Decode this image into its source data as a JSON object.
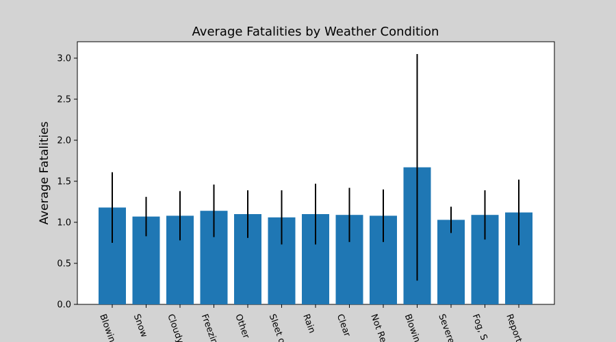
{
  "chart_data": {
    "type": "bar",
    "title": "Average Fatalities by Weather Condition",
    "xlabel": "",
    "ylabel": "Average Fatalities",
    "ylim": [
      0,
      3.2
    ],
    "yticks": [
      0.0,
      0.5,
      1.0,
      1.5,
      2.0,
      2.5,
      3.0
    ],
    "ytick_labels": [
      "0.0",
      "0.5",
      "1.0",
      "1.5",
      "2.0",
      "2.5",
      "3.0"
    ],
    "categories": [
      "Blowin",
      "Snow",
      "Cloudy",
      "Freezin",
      "Other",
      "Sleet o",
      "Rain",
      "Clear",
      "Not Re",
      "Blowin",
      "Severe",
      "Fog, S",
      "Report"
    ],
    "values": [
      1.18,
      1.07,
      1.08,
      1.14,
      1.1,
      1.06,
      1.1,
      1.09,
      1.08,
      1.67,
      1.03,
      1.09,
      1.12
    ],
    "errors": [
      0.43,
      0.24,
      0.3,
      0.32,
      0.29,
      0.33,
      0.37,
      0.33,
      0.32,
      1.38,
      0.16,
      0.3,
      0.4
    ],
    "bar_color": "#1f77b4",
    "error_color": "#000000",
    "grid": false
  }
}
